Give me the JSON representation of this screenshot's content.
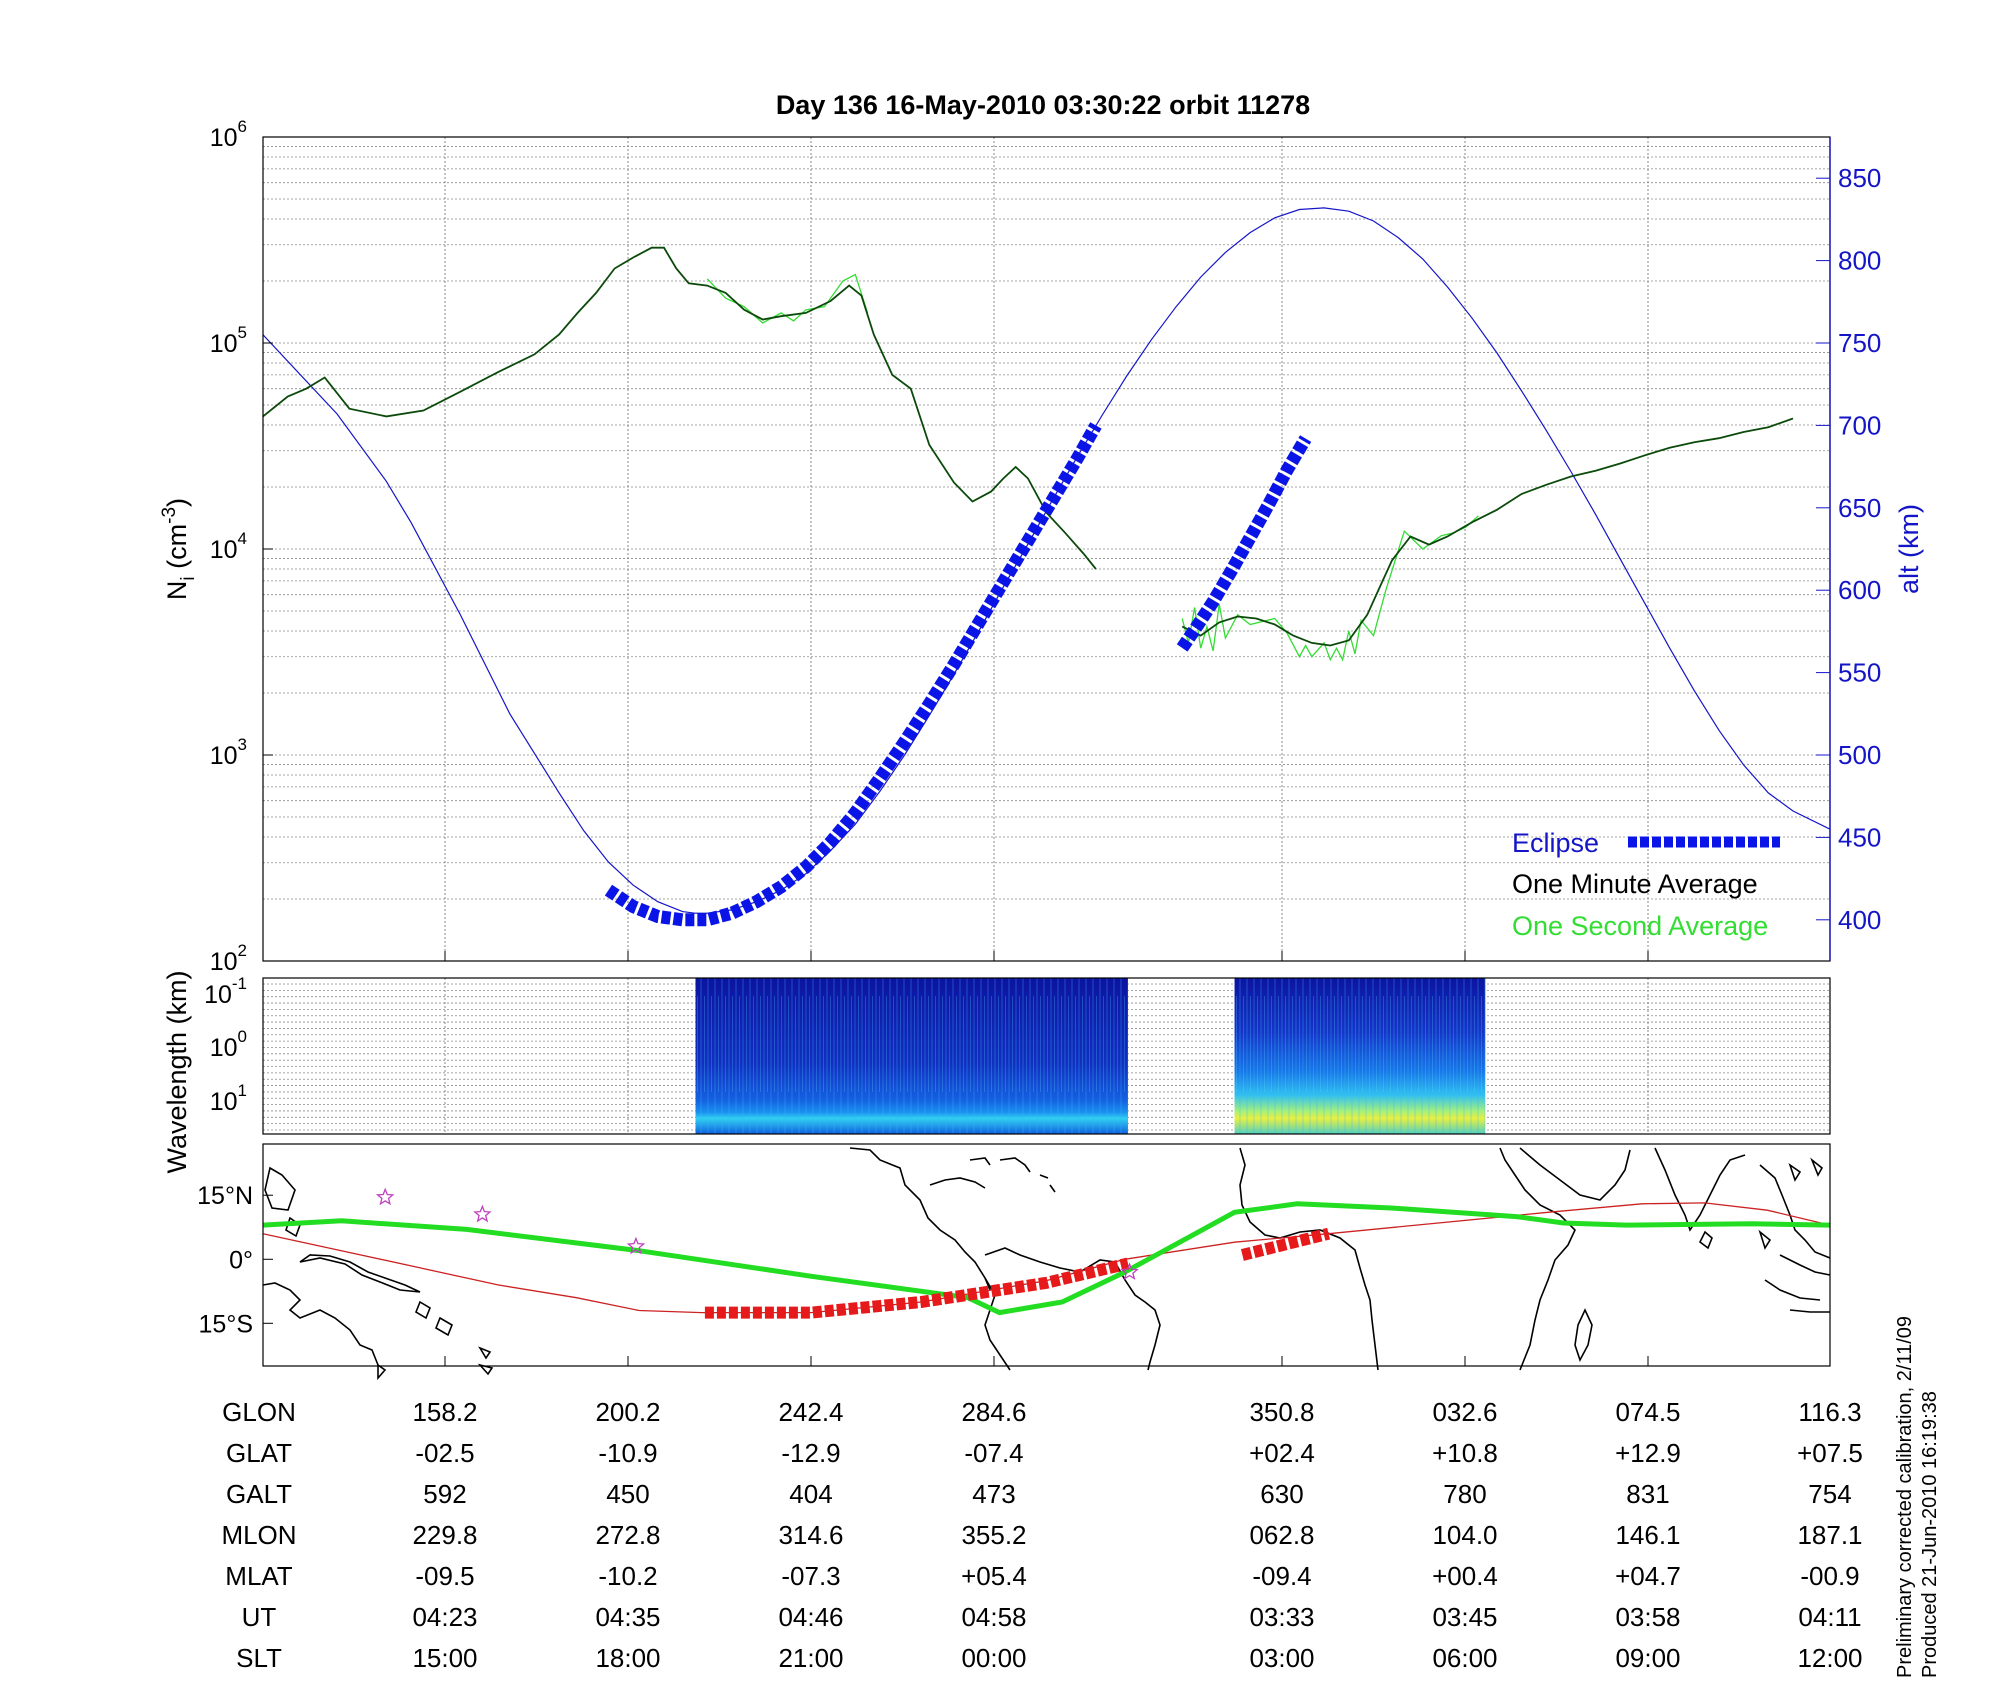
{
  "title": "Day 136  16-May-2010 03:30:22   orbit 11278",
  "footer": [
    "Preliminary corrected calibration, 2/11/09",
    "Produced 21-Jun-2010 16:19:38"
  ],
  "colors": {
    "altitude": "#1515c8",
    "eclipse": "#0a14e6",
    "one_minute": "#0b4a0b",
    "one_second": "#33dd33",
    "track_map": "#22dd22",
    "orbit_map": "#cc2222",
    "eclipse_map": "#e61a1a",
    "star": "#c040c0"
  },
  "chart_data": [
    {
      "type": "line",
      "panel": "density",
      "ylabel_main": "N",
      "ylabel_sub": "i",
      "ylabel_unit": " (cm",
      "ylabel_exp": "-3",
      "ylabel_close": ")",
      "yscale": "log",
      "ylim": [
        100,
        1000000
      ],
      "yticks": [
        {
          "base": "10",
          "exp": "2"
        },
        {
          "base": "10",
          "exp": "3"
        },
        {
          "base": "10",
          "exp": "4"
        },
        {
          "base": "10",
          "exp": "5"
        },
        {
          "base": "10",
          "exp": "6"
        }
      ],
      "y2label": "alt (km)",
      "y2lim": [
        375,
        875
      ],
      "y2ticks": [
        "400",
        "450",
        "500",
        "550",
        "600",
        "650",
        "700",
        "750",
        "800",
        "850"
      ],
      "grid": true,
      "legend_position": "lower-right",
      "legend": {
        "eclipse": "Eclipse",
        "one_minute": "One Minute Average",
        "one_second": "One Second Average"
      },
      "series": [
        {
          "name": "One Minute Average",
          "segments": [
            [
              [
                0,
                44000
              ],
              [
                0.02,
                55000
              ],
              [
                0.035,
                60000
              ],
              [
                0.05,
                68000
              ],
              [
                0.07,
                48000
              ],
              [
                0.1,
                44000
              ],
              [
                0.13,
                47000
              ],
              [
                0.16,
                58000
              ],
              [
                0.19,
                72000
              ],
              [
                0.22,
                88000
              ],
              [
                0.24,
                110000
              ],
              [
                0.255,
                140000
              ],
              [
                0.27,
                175000
              ],
              [
                0.285,
                230000
              ],
              [
                0.3,
                260000
              ],
              [
                0.315,
                290000
              ],
              [
                0.325,
                290000
              ],
              [
                0.335,
                230000
              ],
              [
                0.345,
                195000
              ],
              [
                0.36,
                190000
              ],
              [
                0.375,
                175000
              ],
              [
                0.39,
                145000
              ],
              [
                0.405,
                130000
              ],
              [
                0.42,
                135000
              ],
              [
                0.44,
                140000
              ],
              [
                0.46,
                160000
              ],
              [
                0.475,
                190000
              ],
              [
                0.485,
                170000
              ],
              [
                0.495,
                110000
              ],
              [
                0.51,
                70000
              ],
              [
                0.525,
                60000
              ],
              [
                0.54,
                32000
              ],
              [
                0.56,
                21000
              ],
              [
                0.575,
                17000
              ],
              [
                0.59,
                19000
              ],
              [
                0.6,
                22000
              ],
              [
                0.61,
                25000
              ],
              [
                0.62,
                22000
              ],
              [
                0.635,
                15000
              ],
              [
                0.65,
                12000
              ],
              [
                0.665,
                9500
              ],
              [
                0.675,
                8000
              ]
            ],
            [
              [
                0.745,
                4200
              ],
              [
                0.76,
                3800
              ],
              [
                0.775,
                4400
              ],
              [
                0.79,
                4700
              ],
              [
                0.805,
                4600
              ],
              [
                0.82,
                4300
              ],
              [
                0.835,
                3800
              ],
              [
                0.85,
                3500
              ],
              [
                0.865,
                3400
              ],
              [
                0.88,
                3600
              ],
              [
                0.895,
                4800
              ],
              [
                0.905,
                6500
              ],
              [
                0.915,
                8800
              ],
              [
                0.93,
                11500
              ],
              [
                0.945,
                10500
              ],
              [
                0.96,
                11500
              ],
              [
                0.98,
                13500
              ],
              [
                1.0,
                15500
              ],
              [
                1.02,
                18500
              ],
              [
                1.04,
                20500
              ],
              [
                1.06,
                22500
              ],
              [
                1.08,
                24000
              ],
              [
                1.1,
                26000
              ],
              [
                1.12,
                28500
              ],
              [
                1.14,
                31000
              ],
              [
                1.16,
                33000
              ],
              [
                1.18,
                34500
              ],
              [
                1.2,
                37000
              ],
              [
                1.22,
                39000
              ],
              [
                1.24,
                43000
              ]
            ]
          ]
        },
        {
          "name": "One Second Average",
          "segments": [
            [
              [
                0.36,
                205000
              ],
              [
                0.375,
                165000
              ],
              [
                0.39,
                150000
              ],
              [
                0.405,
                125000
              ],
              [
                0.42,
                140000
              ],
              [
                0.43,
                128000
              ],
              [
                0.44,
                145000
              ],
              [
                0.455,
                150000
              ],
              [
                0.47,
                200000
              ],
              [
                0.48,
                215000
              ],
              [
                0.49,
                140000
              ]
            ],
            [
              [
                0.745,
                4600
              ],
              [
                0.75,
                3500
              ],
              [
                0.755,
                5200
              ],
              [
                0.76,
                3300
              ],
              [
                0.765,
                4200
              ],
              [
                0.77,
                3200
              ],
              [
                0.775,
                5400
              ],
              [
                0.78,
                3700
              ],
              [
                0.79,
                4800
              ],
              [
                0.8,
                4300
              ],
              [
                0.82,
                4600
              ],
              [
                0.83,
                3900
              ],
              [
                0.84,
                3000
              ],
              [
                0.845,
                3400
              ],
              [
                0.85,
                3000
              ],
              [
                0.86,
                3500
              ],
              [
                0.865,
                2900
              ],
              [
                0.87,
                3300
              ],
              [
                0.875,
                2900
              ],
              [
                0.88,
                4000
              ],
              [
                0.885,
                3100
              ],
              [
                0.89,
                4500
              ],
              [
                0.9,
                3800
              ],
              [
                0.91,
                6300
              ],
              [
                0.925,
                12200
              ],
              [
                0.94,
                10000
              ],
              [
                0.955,
                11600
              ],
              [
                0.965,
                12000
              ],
              [
                0.975,
                12800
              ],
              [
                0.985,
                14500
              ]
            ]
          ]
        },
        {
          "name": "alt",
          "axis": "right",
          "segments": [
            [
              [
                0,
                755
              ],
              [
                0.06,
                707
              ],
              [
                0.1,
                666
              ],
              [
                0.12,
                641
              ],
              [
                0.16,
                585
              ],
              [
                0.2,
                525
              ],
              [
                0.24,
                477
              ],
              [
                0.26,
                454
              ],
              [
                0.28,
                435
              ],
              [
                0.3,
                421
              ],
              [
                0.32,
                411
              ],
              [
                0.34,
                405
              ],
              [
                0.35,
                404
              ],
              [
                0.36,
                404
              ],
              [
                0.38,
                406
              ],
              [
                0.4,
                411
              ],
              [
                0.42,
                418
              ],
              [
                0.44,
                428
              ],
              [
                0.46,
                442
              ],
              [
                0.48,
                458
              ],
              [
                0.5,
                478
              ],
              [
                0.52,
                500
              ],
              [
                0.54,
                524
              ],
              [
                0.56,
                549
              ],
              [
                0.58,
                575
              ],
              [
                0.6,
                602
              ],
              [
                0.62,
                628
              ],
              [
                0.64,
                655
              ],
              [
                0.66,
                681
              ],
              [
                0.68,
                706
              ],
              [
                0.7,
                730
              ],
              [
                0.72,
                752
              ],
              [
                0.74,
                772
              ],
              [
                0.76,
                790
              ],
              [
                0.78,
                805
              ],
              [
                0.8,
                817
              ],
              [
                0.82,
                826
              ],
              [
                0.84,
                831
              ],
              [
                0.86,
                832
              ],
              [
                0.88,
                830
              ],
              [
                0.9,
                824
              ],
              [
                0.92,
                814
              ],
              [
                0.94,
                801
              ],
              [
                0.96,
                784
              ],
              [
                0.98,
                765
              ],
              [
                1.0,
                744
              ],
              [
                1.02,
                721
              ],
              [
                1.04,
                697
              ],
              [
                1.06,
                672
              ],
              [
                1.08,
                646
              ],
              [
                1.1,
                619
              ],
              [
                1.12,
                592
              ],
              [
                1.14,
                565
              ],
              [
                1.16,
                539
              ],
              [
                1.18,
                515
              ],
              [
                1.2,
                494
              ],
              [
                1.22,
                477
              ],
              [
                1.24,
                466
              ],
              [
                1.27,
                455
              ],
              [
                1.3,
                447
              ],
              [
                1.35,
                438
              ],
              [
                1.4,
                433
              ]
            ]
          ]
        },
        {
          "name": "Eclipse",
          "axis": "right",
          "segments": [
            [
              [
                0.28,
                418
              ],
              [
                0.3,
                408
              ],
              [
                0.32,
                402
              ],
              [
                0.34,
                400
              ],
              [
                0.36,
                400
              ],
              [
                0.38,
                404
              ],
              [
                0.4,
                411
              ],
              [
                0.42,
                420
              ],
              [
                0.44,
                432
              ],
              [
                0.46,
                447
              ],
              [
                0.48,
                465
              ],
              [
                0.5,
                486
              ],
              [
                0.52,
                508
              ],
              [
                0.54,
                531
              ],
              [
                0.56,
                555
              ],
              [
                0.58,
                580
              ],
              [
                0.6,
                605
              ],
              [
                0.62,
                630
              ],
              [
                0.64,
                655
              ],
              [
                0.66,
                680
              ],
              [
                0.675,
                700
              ]
            ],
            [
              [
                0.745,
                565
              ],
              [
                0.755,
                576
              ],
              [
                0.77,
                593
              ],
              [
                0.785,
                612
              ],
              [
                0.8,
                632
              ],
              [
                0.815,
                652
              ],
              [
                0.83,
                673
              ],
              [
                0.845,
                692
              ]
            ]
          ]
        }
      ]
    },
    {
      "type": "heatmap",
      "panel": "wavelength",
      "ylabel": "Wavelength (km)",
      "yticks": [
        {
          "base": "10",
          "exp": "-1"
        },
        {
          "base": "10",
          "exp": "0"
        },
        {
          "base": "10",
          "exp": "1"
        }
      ],
      "blocks": [
        {
          "from": 0.276,
          "to": 0.552,
          "intensity": "low"
        },
        {
          "from": 0.62,
          "to": 0.78,
          "intensity": "high"
        }
      ]
    },
    {
      "type": "map",
      "panel": "track",
      "yticks": [
        "15°N",
        "0°",
        "15°S"
      ],
      "ylim": [
        -25,
        27
      ]
    }
  ],
  "table": {
    "row_labels": [
      "GLON",
      "GLAT",
      "GALT",
      "MLON",
      "MLAT",
      "UT",
      "SLT"
    ],
    "columns": [
      [
        "158.2",
        "-02.5",
        "592",
        "229.8",
        "-09.5",
        "04:23",
        "15:00"
      ],
      [
        "200.2",
        "-10.9",
        "450",
        "272.8",
        "-10.2",
        "04:35",
        "18:00"
      ],
      [
        "242.4",
        "-12.9",
        "404",
        "314.6",
        "-07.3",
        "04:46",
        "21:00"
      ],
      [
        "284.6",
        "-07.4",
        "473",
        "355.2",
        "+05.4",
        "04:58",
        "00:00"
      ],
      [
        "350.8",
        "+02.4",
        "630",
        "062.8",
        "-09.4",
        "03:33",
        "03:00"
      ],
      [
        "032.6",
        "+10.8",
        "780",
        "104.0",
        "+00.4",
        "03:45",
        "06:00"
      ],
      [
        "074.5",
        "+12.9",
        "831",
        "146.1",
        "+04.7",
        "03:58",
        "09:00"
      ],
      [
        "116.3",
        "+07.5",
        "754",
        "187.1",
        "-00.9",
        "04:11",
        "12:00"
      ]
    ]
  }
}
